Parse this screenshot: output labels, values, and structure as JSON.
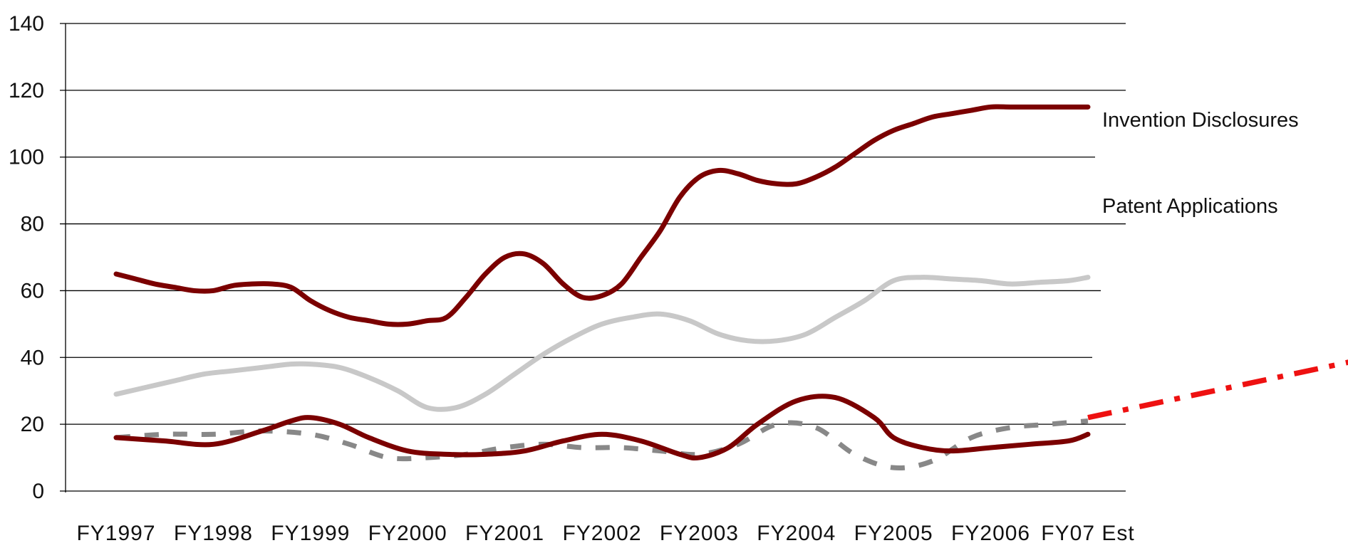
{
  "chart_data": {
    "type": "line",
    "title": "",
    "xlabel": "",
    "ylabel": "",
    "ylim": [
      0,
      140
    ],
    "y_ticks": [
      0,
      20,
      40,
      60,
      80,
      100,
      120,
      140
    ],
    "grid": "horizontal",
    "categories": [
      "FY1997",
      "FY1998",
      "FY1999",
      "FY2000",
      "FY2001",
      "FY2002",
      "FY2003",
      "FY2004",
      "FY2005",
      "FY2006",
      "FY07 Est"
    ],
    "series": [
      {
        "name": "Invention Disclosures",
        "style": "solid",
        "color": "#7b0000",
        "x": [
          0,
          0.2,
          0.4,
          0.6,
          0.8,
          1.0,
          1.2,
          1.4,
          1.6,
          1.8,
          2.0,
          2.2,
          2.4,
          2.6,
          2.8,
          3.0,
          3.2,
          3.4,
          3.6,
          3.8,
          4.0,
          4.2,
          4.4,
          4.6,
          4.8,
          5.0,
          5.2,
          5.4,
          5.6,
          5.8,
          6.0,
          6.2,
          6.4,
          6.6,
          6.8,
          7.0,
          7.2,
          7.4,
          7.6,
          7.8,
          8.0,
          8.2,
          8.4,
          8.6,
          8.8,
          9.0,
          9.2,
          9.4,
          9.6,
          9.8,
          10.0
        ],
        "values": [
          65,
          63.5,
          62,
          61,
          60,
          60,
          61.5,
          62,
          62,
          61,
          57,
          54,
          52,
          51,
          50,
          50,
          51,
          52,
          58,
          65,
          70,
          71,
          68,
          62,
          58,
          58.5,
          62,
          70,
          78,
          88,
          94,
          96,
          95,
          93,
          92,
          92,
          94,
          97,
          101,
          105,
          108,
          110,
          112,
          113,
          114,
          115,
          115,
          115,
          115,
          115,
          115
        ]
      },
      {
        "name": "Patent Applications",
        "style": "solid",
        "color": "#c8c8c8",
        "x": [
          0,
          0.3,
          0.6,
          0.9,
          1.2,
          1.5,
          1.8,
          2.0,
          2.3,
          2.6,
          2.9,
          3.2,
          3.5,
          3.8,
          4.1,
          4.4,
          4.7,
          5.0,
          5.3,
          5.6,
          5.9,
          6.2,
          6.5,
          6.8,
          7.1,
          7.4,
          7.7,
          8.0,
          8.3,
          8.6,
          8.9,
          9.2,
          9.5,
          9.8,
          10.0
        ],
        "values": [
          29,
          31,
          33,
          35,
          36,
          37,
          38,
          38,
          37,
          34,
          30,
          25,
          25,
          29,
          35,
          41,
          46,
          50,
          52,
          53,
          51,
          47,
          45,
          45,
          47,
          52,
          57,
          63,
          64,
          63.5,
          63,
          62,
          62.5,
          63,
          64
        ]
      },
      {
        "name": "",
        "style": "solid",
        "color": "#7b0000",
        "x": [
          0,
          0.5,
          1.0,
          1.5,
          1.8,
          2.0,
          2.3,
          2.6,
          3.0,
          3.4,
          3.8,
          4.2,
          4.6,
          5.0,
          5.4,
          5.8,
          6.0,
          6.3,
          6.6,
          7.0,
          7.4,
          7.8,
          8.0,
          8.3,
          8.6,
          9.0,
          9.4,
          9.8,
          10.0
        ],
        "values": [
          16,
          15,
          14,
          18,
          21,
          22,
          20,
          16,
          12,
          11,
          11,
          12,
          15,
          17,
          15,
          11,
          10,
          13,
          20,
          27,
          28,
          22,
          16,
          13,
          12,
          13,
          14,
          15,
          17
        ]
      },
      {
        "name": "",
        "style": "dashed",
        "color": "#888888",
        "x": [
          0,
          0.5,
          1.0,
          1.5,
          2.0,
          2.4,
          2.8,
          3.2,
          3.6,
          4.0,
          4.4,
          4.8,
          5.2,
          5.6,
          6.0,
          6.4,
          6.8,
          7.2,
          7.6,
          8.0,
          8.4,
          8.8,
          9.2,
          9.6,
          10.0
        ],
        "values": [
          16,
          17,
          17,
          18,
          17,
          14,
          10,
          10,
          11,
          13,
          14,
          13,
          13,
          12,
          11,
          14,
          20,
          19,
          11,
          7,
          9,
          16,
          19,
          20,
          21
        ]
      },
      {
        "name": "",
        "style": "dash-dot",
        "color": "#ee1111",
        "x": [
          10.0,
          12.75
        ],
        "values": [
          22,
          39
        ]
      }
    ],
    "annotations": [
      {
        "text": "Invention Disclosures",
        "series": 0
      },
      {
        "text": "Patent Applications",
        "series": 1
      }
    ]
  }
}
